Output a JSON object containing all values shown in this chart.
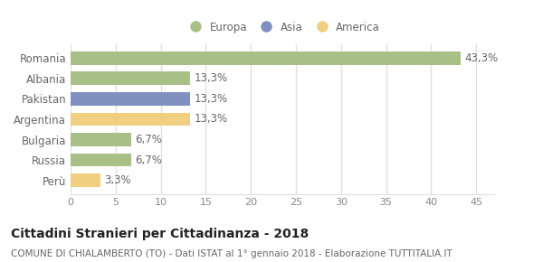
{
  "categories": [
    "Romania",
    "Albania",
    "Pakistan",
    "Argentina",
    "Bulgaria",
    "Russia",
    "Perù"
  ],
  "values": [
    43.3,
    13.3,
    13.3,
    13.3,
    6.7,
    6.7,
    3.3
  ],
  "labels": [
    "43,3%",
    "13,3%",
    "13,3%",
    "13,3%",
    "6,7%",
    "6,7%",
    "3,3%"
  ],
  "colors": [
    "#a8c088",
    "#a8c088",
    "#8090c0",
    "#f0d080",
    "#a8c088",
    "#a8c088",
    "#f0d080"
  ],
  "legend": [
    {
      "label": "Europa",
      "color": "#a8c088"
    },
    {
      "label": "Asia",
      "color": "#8090c0"
    },
    {
      "label": "America",
      "color": "#f0d080"
    }
  ],
  "xlim": [
    0,
    47
  ],
  "xticks": [
    0,
    5,
    10,
    15,
    20,
    25,
    30,
    35,
    40,
    45
  ],
  "title_bold": "Cittadini Stranieri per Cittadinanza - 2018",
  "subtitle": "COMUNE DI CHIALAMBERTO (TO) - Dati ISTAT al 1° gennaio 2018 - Elaborazione TUTTITALIA.IT",
  "bg_color": "#ffffff",
  "plot_bg_color": "#ffffff",
  "grid_color": "#e0e0e0",
  "bar_height": 0.65,
  "label_fontsize": 8.5,
  "tick_fontsize": 8,
  "ytick_fontsize": 8.5,
  "title_fontsize": 10,
  "subtitle_fontsize": 7.5,
  "label_color": "#666666",
  "tick_color": "#888888"
}
